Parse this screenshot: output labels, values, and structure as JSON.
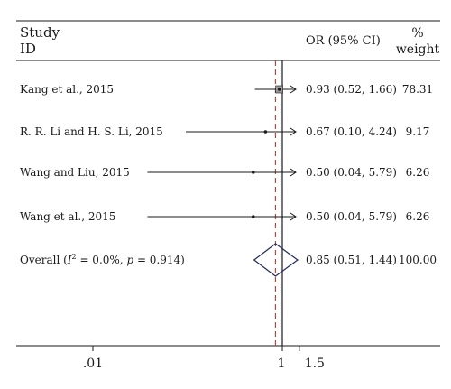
{
  "chart_data": {
    "type": "forest",
    "headers": {
      "study_line1": "Study",
      "study_line2": "ID",
      "or_ci": "OR (95% CI)",
      "weight_line1": "%",
      "weight_line2": "weight"
    },
    "studies": [
      {
        "label": "Kang et al., 2015",
        "or": 0.93,
        "lower": 0.52,
        "upper": 1.66,
        "ci_text": "0.93 (0.52, 1.66)",
        "weight": 78.31,
        "weight_text": "78.31"
      },
      {
        "label": "R. R. Li and H. S. Li, 2015",
        "or": 0.67,
        "lower": 0.1,
        "upper": 4.24,
        "ci_text": "0.67 (0.10, 4.24)",
        "weight": 9.17,
        "weight_text": "9.17"
      },
      {
        "label": "Wang and Liu, 2015",
        "or": 0.5,
        "lower": 0.04,
        "upper": 5.79,
        "ci_text": "0.50 (0.04, 5.79)",
        "weight": 6.26,
        "weight_text": "6.26"
      },
      {
        "label": "Wang et al., 2015",
        "or": 0.5,
        "lower": 0.04,
        "upper": 5.79,
        "ci_text": "0.50 (0.04, 5.79)",
        "weight": 6.26,
        "weight_text": "6.26"
      }
    ],
    "overall": {
      "label_prefix": "Overall (",
      "label_i": "I",
      "label_sup": "2",
      "label_mid": " = 0.0%, ",
      "label_p": "p",
      "label_end": " = 0.914)",
      "or": 0.85,
      "lower": 0.51,
      "upper": 1.44,
      "ci_text": "0.85 (0.51, 1.44)",
      "weight_text": "100.00"
    },
    "x_axis": {
      "scale": "log",
      "ticks": [
        {
          "value": 0.01,
          "label": ".01"
        },
        {
          "value": 1,
          "label": "1"
        },
        {
          "value": 1.5,
          "label": "1.5"
        }
      ],
      "null_value": 1
    },
    "colors": {
      "overall_line": "#b04a3a",
      "diamond": "#1f2a6b",
      "ink": "#1a1a1a"
    }
  }
}
